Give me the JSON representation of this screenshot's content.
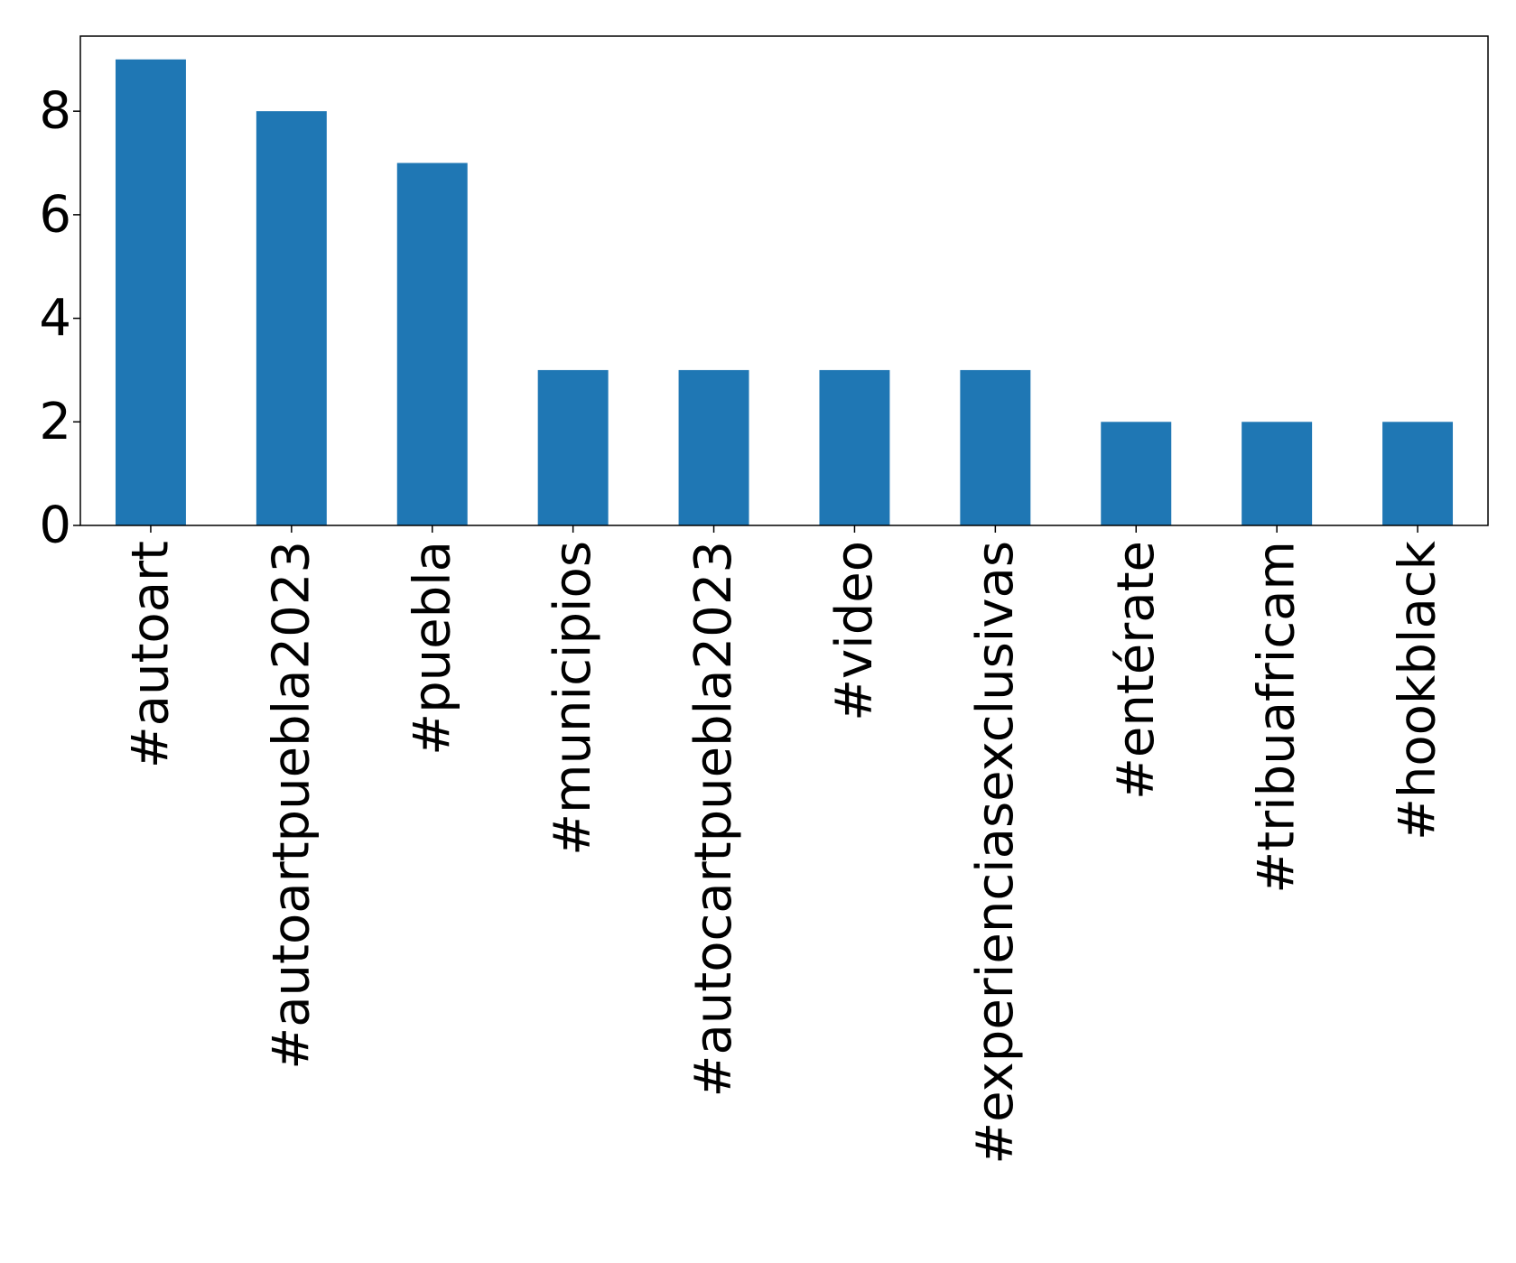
{
  "chart_data": {
    "type": "bar",
    "categories": [
      "#autoart",
      "#autoartpuebla2023",
      "#puebla",
      "#municipios",
      "#autocartpuebla2023",
      "#video",
      "#experienciasexclusivas",
      "#entérate",
      "#tribuafricam",
      "#hookblack"
    ],
    "values": [
      9,
      8,
      7,
      3,
      3,
      3,
      3,
      2,
      2,
      2
    ],
    "yticks": [
      0,
      2,
      4,
      6,
      8
    ],
    "ylim": [
      0,
      9.45
    ],
    "bar_color": "#1f77b4",
    "grid": false,
    "legend": "none",
    "title": "",
    "xlabel": "",
    "ylabel": ""
  }
}
